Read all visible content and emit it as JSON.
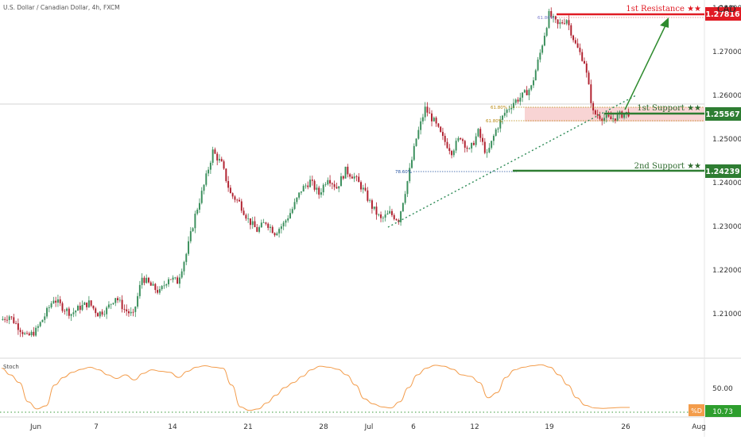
{
  "header": {
    "symbol_title": "U.S. Dollar / Canadian Dollar, 4h, FXCM",
    "currency": "CAD",
    "indicator_label": "Stoch"
  },
  "price_axis": {
    "ticks": [
      "1.28000",
      "1.27000",
      "1.26000",
      "1.25000",
      "1.24000",
      "1.23000",
      "1.22000",
      "1.21000"
    ]
  },
  "stoch_axis": {
    "ticks": [
      "50.00"
    ]
  },
  "time_axis": {
    "ticks": [
      "Jun",
      "7",
      "14",
      "21",
      "28",
      "Jul",
      "6",
      "12",
      "19",
      "26",
      "Aug"
    ]
  },
  "levels": {
    "resistance_label": "1st Resistance ★★",
    "resistance_value": "1.27816",
    "support1_label": "1st Support ★★",
    "support1_value": "1.25567",
    "support2_label": "2nd Support ★★",
    "support2_value": "1.24239",
    "fib_top": "61.80%",
    "fib_support_a": "61.80%",
    "fib_support_b": "61.80%",
    "fib_low": "78.60%"
  },
  "stoch_badges": {
    "d_label": "%D",
    "d_value": "10.73"
  },
  "colors": {
    "up": "#3a8f5c",
    "down": "#b0202e",
    "resistance": "#e01b24",
    "support": "#2e7d32",
    "zone": "#f4c2c2",
    "stoch": "#f39c4b",
    "trend": "#2e8b57"
  },
  "chart_data": {
    "type": "candlestick",
    "title": "U.S. Dollar / Canadian Dollar, 4h, FXCM",
    "ylim": [
      1.1995,
      1.2815
    ],
    "x": [
      "Jun",
      "7",
      "14",
      "21",
      "28",
      "Jul",
      "6",
      "12",
      "19",
      "26",
      "Aug"
    ],
    "price_path": [
      1.2075,
      1.2085,
      1.206,
      1.2035,
      1.205,
      1.2085,
      1.2125,
      1.2105,
      1.209,
      1.2105,
      1.2115,
      1.209,
      1.21,
      1.213,
      1.21,
      1.2085,
      1.2175,
      1.2155,
      1.214,
      1.2175,
      1.2165,
      1.223,
      1.232,
      1.239,
      1.247,
      1.244,
      1.237,
      1.235,
      1.231,
      1.2285,
      1.2305,
      1.228,
      1.23,
      1.2335,
      1.238,
      1.24,
      1.237,
      1.241,
      1.2385,
      1.2425,
      1.241,
      1.238,
      1.234,
      1.231,
      1.2325,
      1.231,
      1.24,
      1.25,
      1.257,
      1.254,
      1.25,
      1.247,
      1.2505,
      1.247,
      1.2515,
      1.246,
      1.252,
      1.256,
      1.2585,
      1.26,
      1.262,
      1.27,
      1.279,
      1.2765,
      1.278,
      1.272,
      1.268,
      1.256,
      1.255,
      1.2545,
      1.2555,
      1.256
    ],
    "stoch_path": [
      88,
      75,
      60,
      22,
      8,
      14,
      55,
      70,
      80,
      86,
      90,
      85,
      75,
      68,
      75,
      65,
      78,
      85,
      82,
      80,
      70,
      82,
      90,
      93,
      90,
      88,
      55,
      12,
      5,
      8,
      20,
      35,
      50,
      60,
      72,
      85,
      92,
      90,
      86,
      75,
      55,
      28,
      18,
      12,
      10,
      22,
      50,
      75,
      88,
      94,
      92,
      86,
      75,
      72,
      60,
      30,
      40,
      70,
      85,
      90,
      93,
      95,
      90,
      75,
      55,
      30,
      15,
      10,
      9,
      10,
      11,
      11
    ],
    "resistance_1": 1.27816,
    "support_1": 1.25567,
    "support_2": 1.24239
  }
}
